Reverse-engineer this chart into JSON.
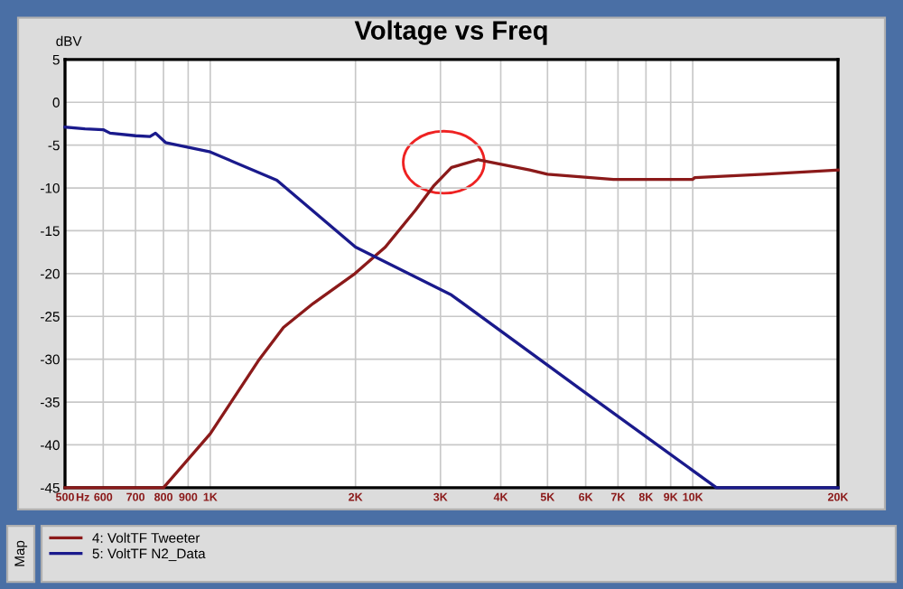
{
  "chart_data": {
    "type": "line",
    "title": "Voltage vs Freq",
    "ylabel": "dBV",
    "xlabel": "Hz",
    "legend_title": "Map",
    "log": "x",
    "grid": true,
    "legend": "bottom",
    "line_style": "solid",
    "marker": "none",
    "xlim": [
      500,
      20000
    ],
    "xticks": [
      {
        "value": 500,
        "label": "500"
      },
      {
        "value": 600,
        "label": "600"
      },
      {
        "value": 700,
        "label": "700"
      },
      {
        "value": 800,
        "label": "800"
      },
      {
        "value": 900,
        "label": "900"
      },
      {
        "value": 1000,
        "label": "1K"
      },
      {
        "value": 2000,
        "label": "2K"
      },
      {
        "value": 3000,
        "label": "3K"
      },
      {
        "value": 4000,
        "label": "4K"
      },
      {
        "value": 5000,
        "label": "5K"
      },
      {
        "value": 6000,
        "label": "6K"
      },
      {
        "value": 7000,
        "label": "7K"
      },
      {
        "value": 8000,
        "label": "8K"
      },
      {
        "value": 9000,
        "label": "9K"
      },
      {
        "value": 10000,
        "label": "10K"
      },
      {
        "value": 20000,
        "label": "20K"
      }
    ],
    "ylim": [
      -45,
      5
    ],
    "yticks": [
      5,
      0,
      -5,
      -10,
      -15,
      -20,
      -25,
      -30,
      -35,
      -40,
      -45
    ],
    "series": [
      {
        "name": "4: VoltTF Tweeter",
        "color": "#8b1a1a",
        "x": [
          500,
          800,
          1000,
          1257,
          1418,
          1633,
          1995,
          2306,
          2662,
          2900,
          3162,
          3595,
          4590,
          5000,
          6850,
          9990,
          10100,
          14050,
          20000
        ],
        "values": [
          -45,
          -45,
          -38.7,
          -30.2,
          -26.3,
          -23.5,
          -20,
          -16.9,
          -12.6,
          -9.8,
          -7.6,
          -6.7,
          -7.9,
          -8.4,
          -9,
          -9,
          -8.8,
          -8.4,
          -7.9
        ]
      },
      {
        "name": "5: VoltTF N2_Data",
        "color": "#1a1a8c",
        "x": [
          500,
          550,
          600,
          620,
          700,
          750,
          770,
          808,
          1000,
          1374,
          2000,
          3162,
          5950,
          11200,
          20000
        ],
        "values": [
          -2.9,
          -3.1,
          -3.2,
          -3.6,
          -3.9,
          -4,
          -3.6,
          -4.7,
          -5.8,
          -9.1,
          -16.9,
          -22.5,
          -33.8,
          -45,
          -45
        ]
      }
    ]
  }
}
